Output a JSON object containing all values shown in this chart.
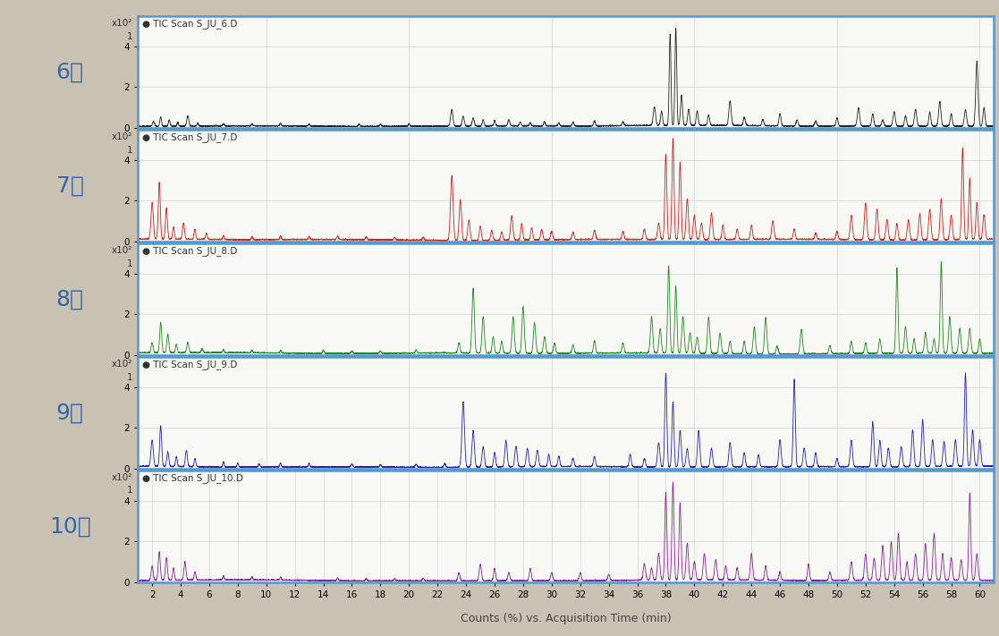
{
  "months": [
    "6월",
    "7월",
    "8월",
    "9월",
    "10월"
  ],
  "labels": [
    "TIC Scan S_JU_6.D",
    "TIC Scan S_JU_7.D",
    "TIC Scan S_JU_8.D",
    "TIC Scan S_JU_9.D",
    "TIC Scan S_JU_10.D"
  ],
  "colors": [
    "#222222",
    "#cc2222",
    "#228822",
    "#2222bb",
    "#882299"
  ],
  "x_min": 1,
  "x_max": 61,
  "y_min": 0,
  "y_max": 5.5,
  "yticks": [
    0,
    2,
    4
  ],
  "xlabel": "Counts (%) vs. Acquisition Time (min)",
  "background_panel": "#f8f8f5",
  "background_outer": "#c9c1b2",
  "grid_color": "#cccccc",
  "border_color": "#5599cc",
  "month_label_color": "#3366aa",
  "xticks": [
    2,
    4,
    6,
    8,
    10,
    12,
    14,
    16,
    18,
    20,
    22,
    24,
    26,
    28,
    30,
    32,
    34,
    36,
    38,
    40,
    42,
    44,
    46,
    48,
    50,
    52,
    54,
    56,
    58,
    60
  ],
  "seed": 123
}
